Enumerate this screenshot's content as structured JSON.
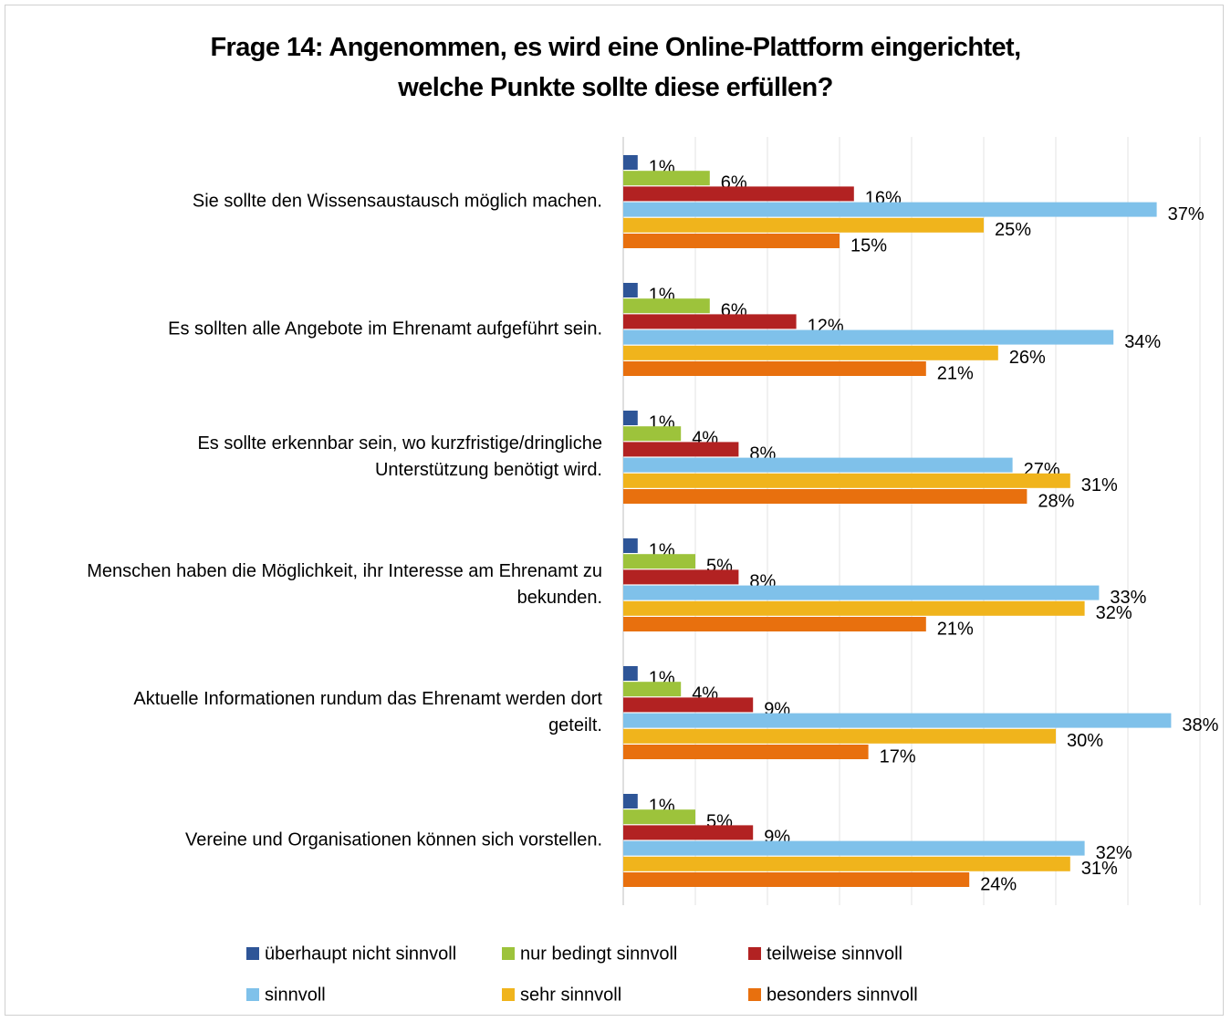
{
  "chart_data": {
    "type": "barh",
    "title": "Frage 14: Angenommen, es wird eine Online-Plattform eingerichtet,\nwelche Punkte sollte diese erfüllen?",
    "categories": [
      "Sie sollte den Wissensaustausch möglich machen.",
      "Es sollten alle Angebote im Ehrenamt aufgeführt sein.",
      "Es sollte erkennbar sein, wo kurzfristige/dringliche\nUnterstützung benötigt wird.",
      "Menschen haben die Möglichkeit, ihr Interesse am Ehrenamt zu\nbekunden.",
      "Aktuelle Informationen rundum das Ehrenamt werden dort\ngeteilt.",
      "Vereine und Organisationen können sich vorstellen."
    ],
    "series": [
      {
        "name": "überhaupt nicht sinnvoll",
        "color": "#2e5597",
        "values": [
          1,
          1,
          1,
          1,
          1,
          1
        ],
        "value_labels": [
          "1%",
          "1%",
          "1%",
          "1%",
          "1%",
          "1%"
        ]
      },
      {
        "name": "nur bedingt sinnvoll",
        "color": "#9dc33b",
        "values": [
          6,
          6,
          4,
          5,
          4,
          5
        ],
        "value_labels": [
          "6%",
          "6%",
          "4%",
          "5%",
          "4%",
          "5%"
        ]
      },
      {
        "name": "teilweise sinnvoll",
        "color": "#b22222",
        "values": [
          16,
          12,
          8,
          8,
          9,
          9
        ],
        "value_labels": [
          "16%",
          "12%",
          "8%",
          "8%",
          "9%",
          "9%"
        ]
      },
      {
        "name": "sinnvoll",
        "color": "#7fc1ea",
        "values": [
          37,
          34,
          27,
          33,
          38,
          32
        ],
        "value_labels": [
          "37%",
          "34%",
          "27%",
          "33%",
          "38%",
          "32%"
        ]
      },
      {
        "name": "sehr sinnvoll",
        "color": "#f0b41c",
        "values": [
          25,
          26,
          31,
          32,
          30,
          31
        ],
        "value_labels": [
          "25%",
          "26%",
          "31%",
          "32%",
          "30%",
          "31%"
        ]
      },
      {
        "name": "besonders sinnvoll",
        "color": "#e8700e",
        "values": [
          15,
          21,
          28,
          21,
          17,
          24
        ],
        "value_labels": [
          "15%",
          "21%",
          "28%",
          "21%",
          "17%",
          "24%"
        ]
      }
    ],
    "xlim": [
      0,
      40
    ],
    "xticks": [
      0,
      5,
      10,
      15,
      20,
      25,
      30,
      35,
      40
    ],
    "grid": true
  }
}
